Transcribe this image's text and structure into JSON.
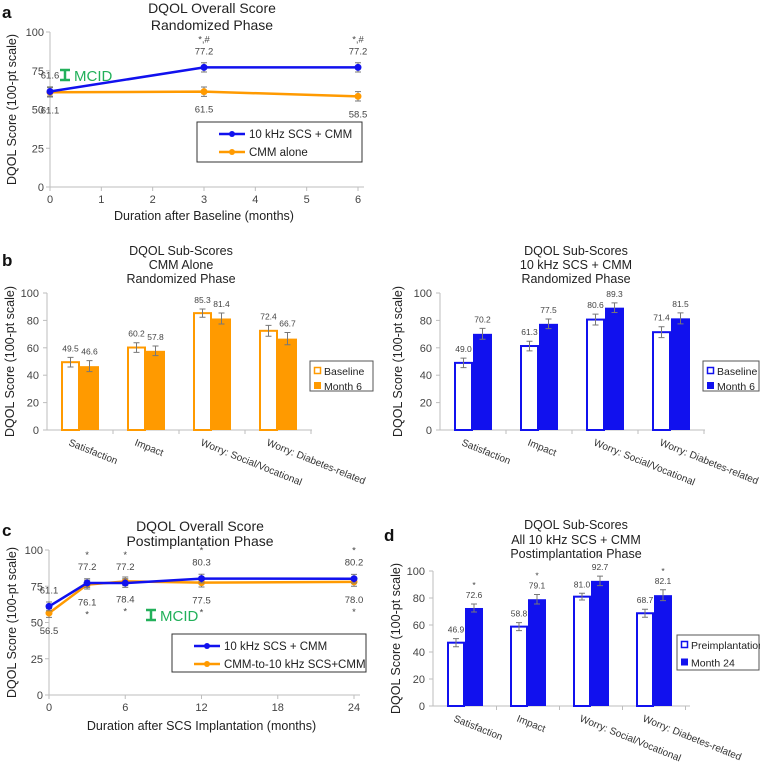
{
  "panel_labels": [
    "a",
    "b",
    "c",
    "d"
  ],
  "colors": {
    "blue": "#1111ee",
    "orange": "#ff9a00",
    "mcid": "#22b05a",
    "axis": "#bdbdbd",
    "error": "#777777"
  },
  "chart_data": [
    {
      "id": "a",
      "type": "line",
      "title": [
        "DQOL Overall Score",
        "Randomized Phase"
      ],
      "xlabel": "Duration after Baseline (months)",
      "ylabel": "DQOL Score (100-pt scale)",
      "xlim": [
        0,
        6
      ],
      "ylim": [
        0,
        100
      ],
      "xticks": [
        "0",
        "1",
        "2",
        "3",
        "4",
        "5",
        "6"
      ],
      "yticks": [
        "0",
        "25",
        "50",
        "75",
        "100"
      ],
      "legend_position": "bottom-right",
      "mcid_label": "MCID",
      "series": [
        {
          "name": "10 kHz SCS + CMM",
          "color": "#1111ee",
          "x": [
            0,
            3,
            6
          ],
          "y": [
            61.6,
            77.2,
            77.2
          ],
          "err": [
            3,
            3,
            3
          ],
          "value_labels": [
            "61.6",
            "77.2",
            "77.2"
          ],
          "annotations": [
            "",
            "*,#",
            "*,#"
          ]
        },
        {
          "name": "CMM alone",
          "color": "#ff9a00",
          "x": [
            0,
            3,
            6
          ],
          "y": [
            61.1,
            61.5,
            58.5
          ],
          "err": [
            3,
            3,
            3
          ],
          "value_labels": [
            "61.1",
            "61.5",
            "58.5"
          ],
          "annotations": [
            "",
            "",
            ""
          ]
        }
      ]
    },
    {
      "id": "b-left",
      "type": "bar",
      "title": [
        "DQOL Sub-Scores",
        "CMM Alone",
        "Randomized Phase"
      ],
      "ylabel": "DQOL Score (100-pt scale)",
      "ylim": [
        0,
        100
      ],
      "yticks": [
        "0",
        "20",
        "40",
        "60",
        "80",
        "100"
      ],
      "categories": [
        "Satisfaction",
        "Impact",
        "Worry: Social/Vocational",
        "Worry: Diabetes-related"
      ],
      "legend_position": "right",
      "color": "#ff9a00",
      "series": [
        {
          "name": "Baseline",
          "filled": false,
          "values": [
            49.5,
            60.2,
            85.3,
            72.4
          ],
          "err": [
            3.5,
            3.5,
            3,
            4
          ],
          "value_labels": [
            "49.5",
            "60.2",
            "85.3",
            "72.4"
          ],
          "annotations": [
            "",
            "",
            "",
            ""
          ]
        },
        {
          "name": "Month 6",
          "filled": true,
          "values": [
            46.6,
            57.8,
            81.4,
            66.7
          ],
          "err": [
            4,
            3.5,
            4,
            4.5
          ],
          "value_labels": [
            "46.6",
            "57.8",
            "81.4",
            "66.7"
          ],
          "annotations": [
            "",
            "",
            "",
            ""
          ]
        }
      ]
    },
    {
      "id": "b-right",
      "type": "bar",
      "title": [
        "DQOL Sub-Scores",
        "10 kHz SCS + CMM",
        "Randomized Phase"
      ],
      "ylabel": "DQOL Score (100-pt scale)",
      "ylim": [
        0,
        100
      ],
      "yticks": [
        "0",
        "20",
        "40",
        "60",
        "80",
        "100"
      ],
      "categories": [
        "Satisfaction",
        "Impact",
        "Worry: Social/Vocational",
        "Worry: Diabetes-related"
      ],
      "legend_position": "right",
      "color": "#1111ee",
      "series": [
        {
          "name": "Baseline",
          "filled": false,
          "values": [
            49.0,
            61.3,
            80.6,
            71.4
          ],
          "err": [
            3.5,
            3.5,
            4,
            4
          ],
          "value_labels": [
            "49.0",
            "61.3",
            "80.6",
            "71.4"
          ],
          "annotations": [
            "",
            "",
            "",
            ""
          ]
        },
        {
          "name": "Month 6",
          "filled": true,
          "values": [
            70.2,
            77.5,
            89.3,
            81.5
          ],
          "err": [
            4,
            3.5,
            3.5,
            4
          ],
          "value_labels": [
            "70.2",
            "77.5",
            "89.3",
            "81.5"
          ],
          "annotations": [
            "",
            "",
            "",
            ""
          ]
        }
      ]
    },
    {
      "id": "c",
      "type": "line",
      "title": [
        "DQOL Overall Score",
        "Postimplantation Phase"
      ],
      "xlabel": "Duration after SCS Implantation (months)",
      "ylabel": "DQOL Score (100-pt scale)",
      "xlim": [
        0,
        24
      ],
      "ylim": [
        0,
        100
      ],
      "xticks": [
        "0",
        "6",
        "12",
        "18",
        "24"
      ],
      "yticks": [
        "0",
        "25",
        "50",
        "75",
        "100"
      ],
      "legend_position": "bottom-right",
      "mcid_label": "MCID",
      "series": [
        {
          "name": "10 kHz SCS + CMM",
          "color": "#1111ee",
          "x": [
            0,
            3,
            6,
            12,
            24
          ],
          "y": [
            61.1,
            77.2,
            77.2,
            80.3,
            80.2
          ],
          "err": [
            3,
            3,
            3,
            3,
            3
          ],
          "value_labels": [
            "61.1",
            "77.2",
            "77.2",
            "80.3",
            "80.2"
          ],
          "annotations": [
            "",
            "*",
            "*",
            "*",
            "*"
          ]
        },
        {
          "name": "CMM-to-10 kHz SCS+CMM",
          "color": "#ff9a00",
          "x": [
            0,
            3,
            6,
            12,
            24
          ],
          "y": [
            56.5,
            76.1,
            78.4,
            77.5,
            78.0
          ],
          "err": [
            3,
            3,
            3,
            3,
            3
          ],
          "value_labels": [
            "56.5",
            "76.1",
            "78.4",
            "77.5",
            "78.0"
          ],
          "annotations": [
            "",
            "*",
            "*",
            "*",
            "*"
          ]
        }
      ]
    },
    {
      "id": "d",
      "type": "bar",
      "title": [
        "DQOL Sub-Scores",
        "All 10 kHz SCS + CMM",
        "Postimplantation Phase"
      ],
      "ylabel": "DQOL Score (100-pt scale)",
      "ylim": [
        0,
        100
      ],
      "yticks": [
        "0",
        "20",
        "40",
        "60",
        "80",
        "100"
      ],
      "categories": [
        "Satisfaction",
        "Impact",
        "Worry: Social/Vocational",
        "Worry: Diabetes-related"
      ],
      "legend_position": "right",
      "color": "#1111ee",
      "series": [
        {
          "name": "Preimplantation",
          "filled": false,
          "values": [
            46.9,
            58.8,
            81.0,
            68.7
          ],
          "err": [
            3,
            3,
            2.5,
            3
          ],
          "value_labels": [
            "46.9",
            "58.8",
            "81.0",
            "68.7"
          ],
          "annotations": [
            "",
            "",
            "",
            ""
          ]
        },
        {
          "name": "Month 24",
          "filled": true,
          "values": [
            72.6,
            79.1,
            92.7,
            82.1
          ],
          "err": [
            3,
            3.5,
            3.5,
            4
          ],
          "value_labels": [
            "72.6",
            "79.1",
            "92.7",
            "82.1"
          ],
          "annotations": [
            "*",
            "*",
            "*",
            "*"
          ]
        }
      ]
    }
  ]
}
